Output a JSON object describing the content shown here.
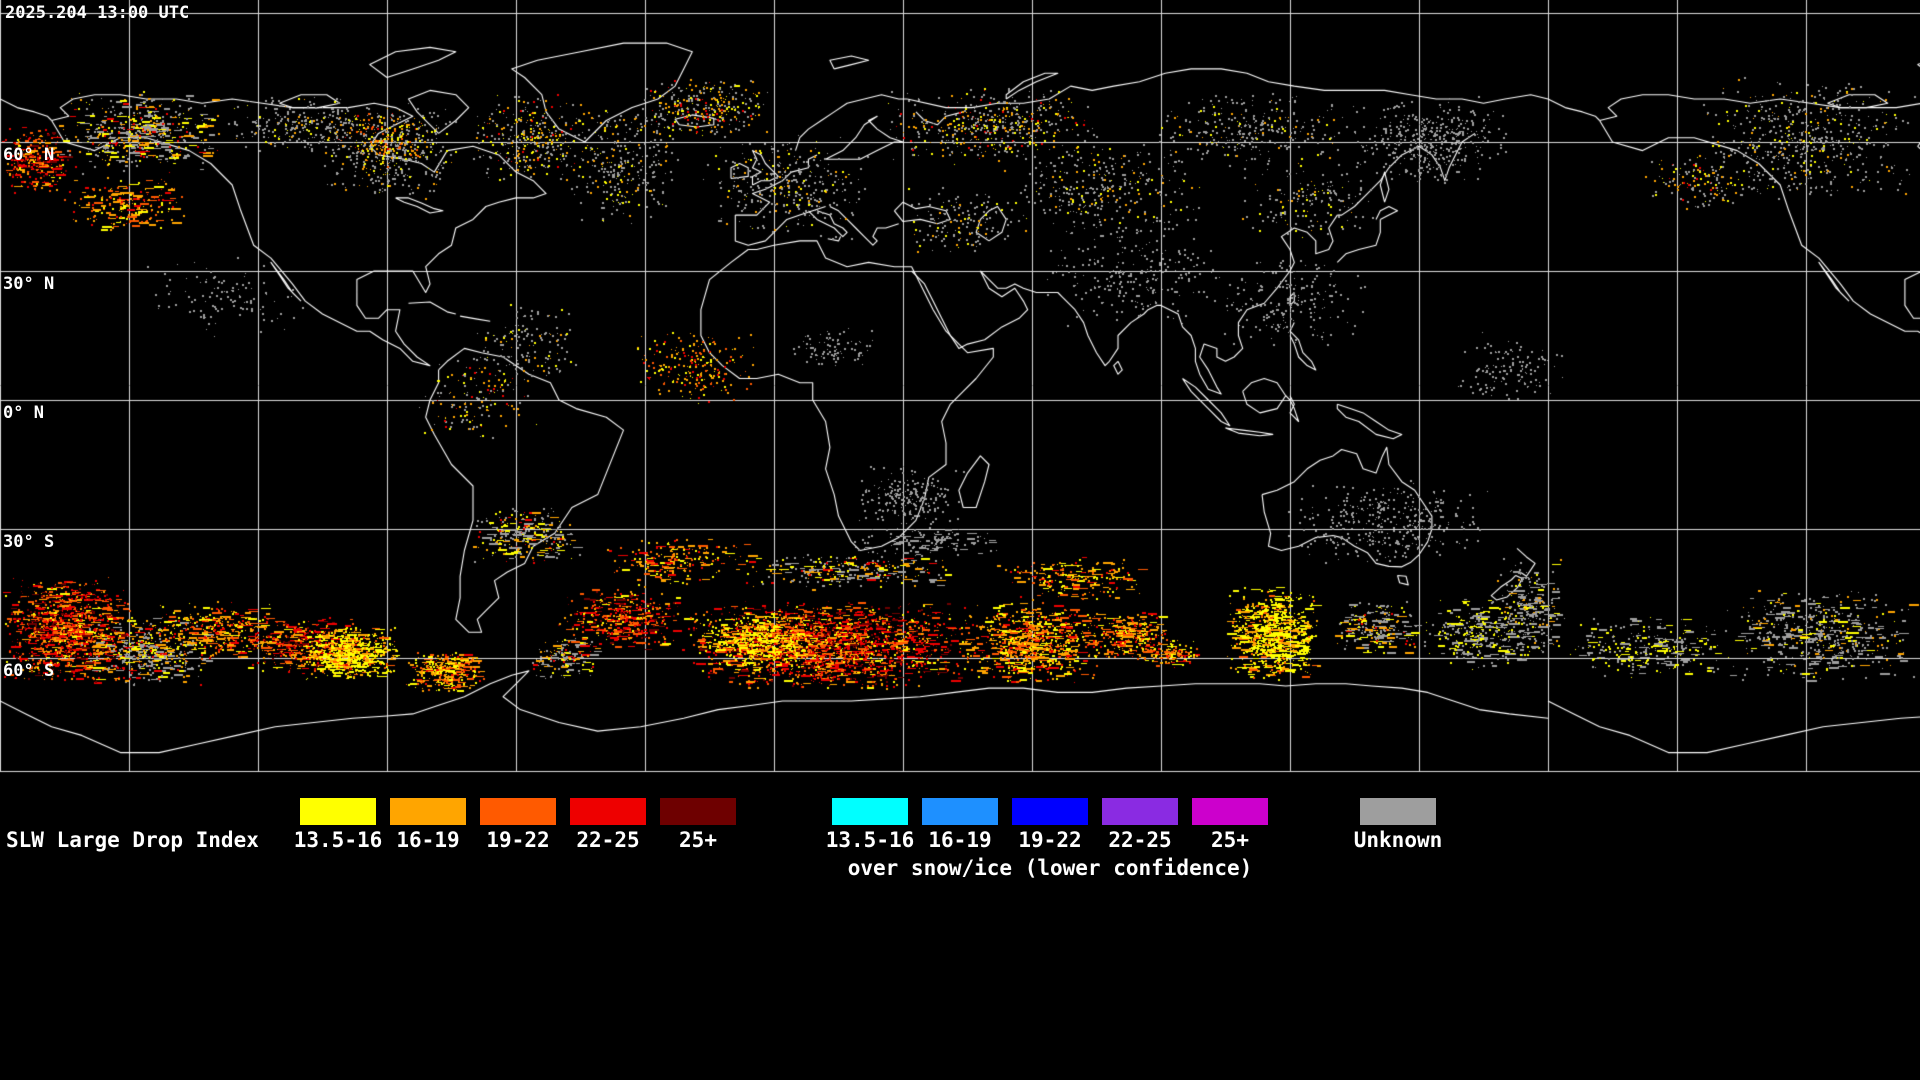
{
  "header": {
    "timestamp": "2025.204 13:00 UTC"
  },
  "map": {
    "lat_labels": [
      "60° N",
      "30° N",
      "0° N",
      "30° S",
      "60° S"
    ]
  },
  "legend": {
    "title": "SLW Large Drop Index",
    "warm": {
      "entries": [
        {
          "label": "13.5-16",
          "color": "#ffff00"
        },
        {
          "label": "16-19",
          "color": "#ffa500"
        },
        {
          "label": "19-22",
          "color": "#ff5a00"
        },
        {
          "label": "22-25",
          "color": "#ee0000"
        },
        {
          "label": "25+",
          "color": "#6e0000"
        }
      ]
    },
    "cold": {
      "subtitle": "over snow/ice (lower confidence)",
      "entries": [
        {
          "label": "13.5-16",
          "color": "#00ffff"
        },
        {
          "label": "16-19",
          "color": "#1e90ff"
        },
        {
          "label": "19-22",
          "color": "#0000ff"
        },
        {
          "label": "22-25",
          "color": "#8a2be2"
        },
        {
          "label": "25+",
          "color": "#cc00cc"
        }
      ]
    },
    "unknown": {
      "label": "Unknown",
      "color": "#9e9e9e"
    }
  }
}
